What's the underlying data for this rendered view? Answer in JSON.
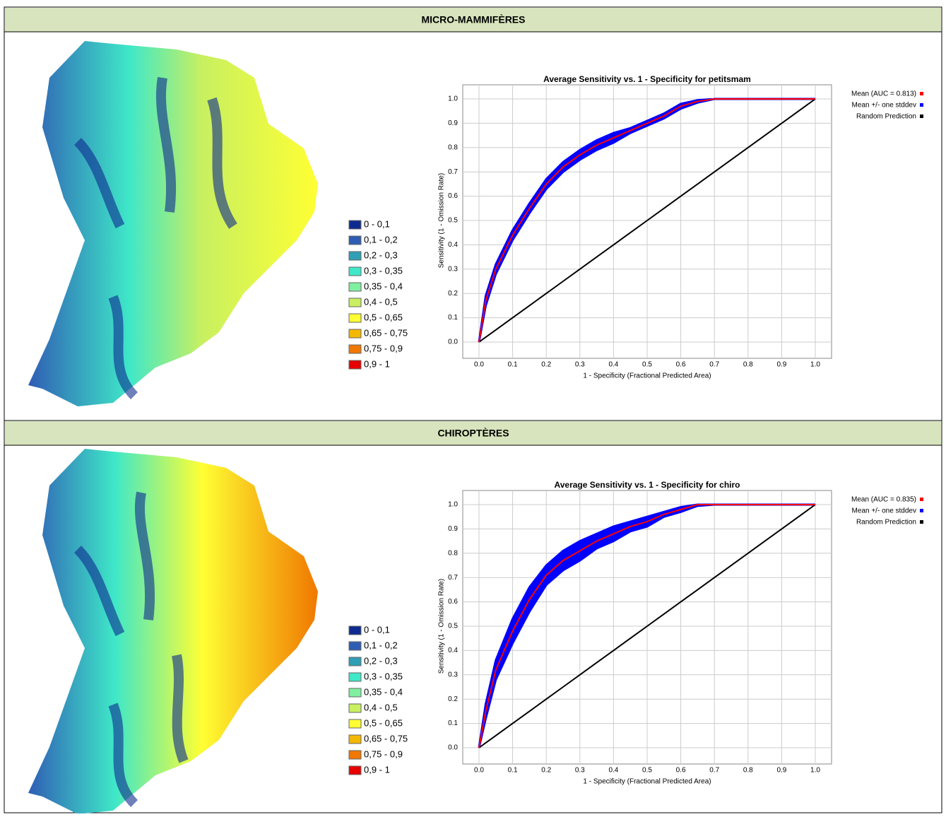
{
  "sections": [
    {
      "title": "MICRO-MAMMIFÈRES",
      "legend": [
        {
          "label": "0 - 0,1",
          "color": "#0d2a8f"
        },
        {
          "label": "0,1 - 0,2",
          "color": "#2f5db4"
        },
        {
          "label": "0,2 - 0,3",
          "color": "#2e9fb5"
        },
        {
          "label": "0,3 - 0,35",
          "color": "#3fe8c8"
        },
        {
          "label": "0,35 - 0,4",
          "color": "#7ff0a0"
        },
        {
          "label": "0,4 - 0,5",
          "color": "#c8f060"
        },
        {
          "label": "0,5 - 0,65",
          "color": "#ffff33"
        },
        {
          "label": "0,65 - 0,75",
          "color": "#f5b800"
        },
        {
          "label": "0,75 - 0,9",
          "color": "#f07800"
        },
        {
          "label": "0,9 - 1",
          "color": "#e60000"
        }
      ]
    },
    {
      "title": "CHIROPTÈRES",
      "legend": [
        {
          "label": "0 - 0,1",
          "color": "#0d2a8f"
        },
        {
          "label": "0,1 - 0,2",
          "color": "#2f5db4"
        },
        {
          "label": "0,2 - 0,3",
          "color": "#2e9fb5"
        },
        {
          "label": "0,3 - 0,35",
          "color": "#3fe8c8"
        },
        {
          "label": "0,35 - 0,4",
          "color": "#7ff0a0"
        },
        {
          "label": "0,4 - 0,5",
          "color": "#c8f060"
        },
        {
          "label": "0,5 - 0,65",
          "color": "#ffff33"
        },
        {
          "label": "0,65 - 0,75",
          "color": "#f5b800"
        },
        {
          "label": "0,75 - 0,9",
          "color": "#f07800"
        },
        {
          "label": "0,9 - 1",
          "color": "#e60000"
        }
      ]
    }
  ],
  "chart_data": [
    {
      "type": "line",
      "title": "Average Sensitivity vs. 1 - Specificity for petitsmam",
      "xlabel": "1 - Specificity (Fractional Predicted Area)",
      "ylabel": "Sensitivity (1 - Omission Rate)",
      "legend": "right",
      "grid": true,
      "x": [
        0,
        0.02,
        0.05,
        0.1,
        0.15,
        0.2,
        0.25,
        0.3,
        0.35,
        0.4,
        0.45,
        0.5,
        0.55,
        0.6,
        0.65,
        0.7,
        0.8,
        0.9,
        1.0
      ],
      "xlim": [
        0,
        1
      ],
      "ylim": [
        0,
        1
      ],
      "xticks": [
        {
          "value": 0,
          "label": "0.0"
        },
        0.1,
        0.2,
        0.3,
        0.4,
        0.5,
        0.6,
        0.7,
        0.8,
        0.9,
        {
          "value": 1,
          "label": "1.0"
        }
      ],
      "yticks": [
        {
          "value": 0,
          "label": "0.0"
        },
        0.1,
        0.2,
        0.3,
        0.4,
        0.5,
        0.6,
        0.7,
        0.8,
        0.9,
        {
          "value": 1,
          "label": "1.0"
        }
      ],
      "series": [
        {
          "name": "Mean (AUC = 0.813)",
          "color": "#ff0000",
          "values": [
            0,
            0.17,
            0.3,
            0.44,
            0.55,
            0.65,
            0.72,
            0.77,
            0.81,
            0.84,
            0.87,
            0.9,
            0.93,
            0.97,
            0.99,
            1,
            1,
            1,
            1
          ]
        },
        {
          "name": "Mean +/- one stddev",
          "color": "#0000ff",
          "upper": [
            0,
            0.19,
            0.32,
            0.46,
            0.57,
            0.67,
            0.74,
            0.79,
            0.83,
            0.86,
            0.88,
            0.91,
            0.94,
            0.98,
            0.995,
            1,
            1,
            1,
            1
          ],
          "lower": [
            0,
            0.15,
            0.28,
            0.42,
            0.53,
            0.63,
            0.7,
            0.75,
            0.79,
            0.82,
            0.86,
            0.89,
            0.92,
            0.96,
            0.985,
            1,
            1,
            1,
            1
          ]
        },
        {
          "name": "Random Prediction",
          "color": "#000000",
          "values": [
            0,
            0.02,
            0.05,
            0.1,
            0.15,
            0.2,
            0.25,
            0.3,
            0.35,
            0.4,
            0.45,
            0.5,
            0.55,
            0.6,
            0.65,
            0.7,
            0.8,
            0.9,
            1.0
          ]
        }
      ]
    },
    {
      "type": "line",
      "title": "Average Sensitivity vs. 1 - Specificity for chiro",
      "xlabel": "1 - Specificity (Fractional Predicted Area)",
      "ylabel": "Sensitivity (1 - Omission Rate)",
      "legend": "right",
      "grid": true,
      "x": [
        0,
        0.02,
        0.05,
        0.1,
        0.15,
        0.2,
        0.25,
        0.3,
        0.35,
        0.4,
        0.45,
        0.5,
        0.55,
        0.6,
        0.65,
        0.7,
        0.8,
        0.9,
        1.0
      ],
      "xlim": [
        0,
        1
      ],
      "ylim": [
        0,
        1
      ],
      "xticks": [
        {
          "value": 0,
          "label": "0.0"
        },
        0.1,
        0.2,
        0.3,
        0.4,
        0.5,
        0.6,
        0.7,
        0.8,
        0.9,
        {
          "value": 1,
          "label": "1.0"
        }
      ],
      "yticks": [
        {
          "value": 0,
          "label": "0.0"
        },
        0.1,
        0.2,
        0.3,
        0.4,
        0.5,
        0.6,
        0.7,
        0.8,
        0.9,
        {
          "value": 1,
          "label": "1.0"
        }
      ],
      "series": [
        {
          "name": "Mean (AUC = 0.835)",
          "color": "#ff0000",
          "values": [
            0,
            0.15,
            0.32,
            0.48,
            0.61,
            0.71,
            0.77,
            0.81,
            0.85,
            0.88,
            0.91,
            0.93,
            0.96,
            0.98,
            1,
            1,
            1,
            1,
            1
          ]
        },
        {
          "name": "Mean +/- one stddev",
          "color": "#0000ff",
          "upper": [
            0,
            0.18,
            0.36,
            0.53,
            0.66,
            0.75,
            0.81,
            0.85,
            0.88,
            0.91,
            0.93,
            0.95,
            0.97,
            0.99,
            1,
            1,
            1,
            1,
            1
          ],
          "lower": [
            0,
            0.12,
            0.28,
            0.43,
            0.56,
            0.67,
            0.73,
            0.77,
            0.82,
            0.85,
            0.89,
            0.91,
            0.95,
            0.97,
            0.995,
            1,
            1,
            1,
            1
          ]
        },
        {
          "name": "Random Prediction",
          "color": "#000000",
          "values": [
            0,
            0.02,
            0.05,
            0.1,
            0.15,
            0.2,
            0.25,
            0.3,
            0.35,
            0.4,
            0.45,
            0.5,
            0.55,
            0.6,
            0.65,
            0.7,
            0.8,
            0.9,
            1.0
          ]
        }
      ]
    }
  ]
}
